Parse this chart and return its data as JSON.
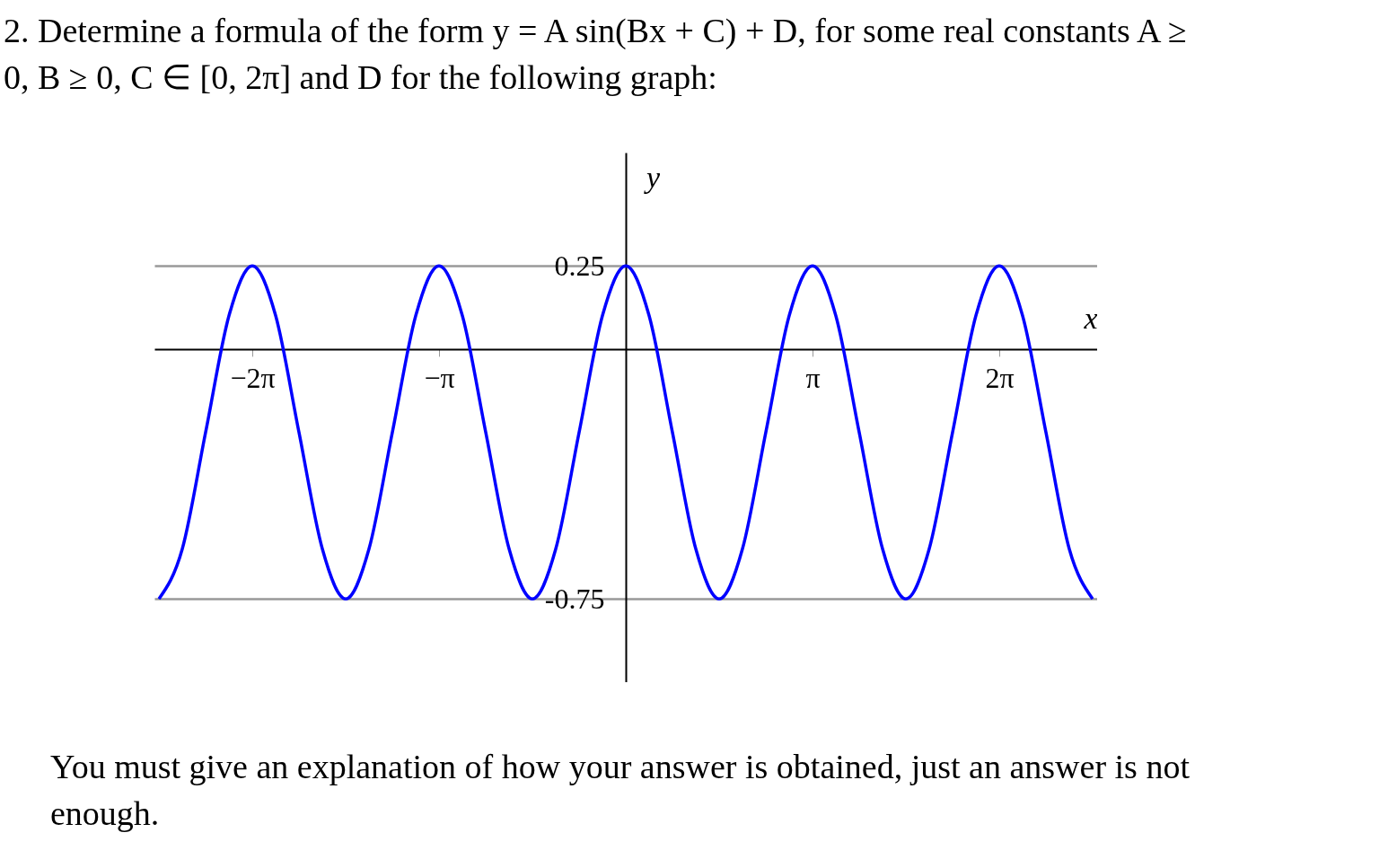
{
  "chart_data": {
    "type": "line",
    "title": "2. Determine a formula of the form y = A sin(Bx + C) + D, for some real constants A ≥ 0, B ≥ 0, C ∈ [0, 2π] and D for the following graph:",
    "xlabel": "x",
    "ylabel": "y",
    "annotations": [
      "You must give an explanation of how your answer is obtained, just an answer is not enough."
    ],
    "x": [
      -7.854,
      -7.461,
      -7.069,
      -6.676,
      -6.283,
      -5.89,
      -5.498,
      -5.105,
      -4.712,
      -4.32,
      -3.927,
      -3.534,
      -3.142,
      -2.749,
      -2.356,
      -1.963,
      -1.571,
      -1.178,
      -0.785,
      -0.393,
      0,
      0.393,
      0.785,
      1.178,
      1.571,
      1.963,
      2.356,
      2.749,
      3.142,
      3.534,
      3.927,
      4.32,
      4.712,
      5.105,
      5.498,
      5.89,
      6.283,
      6.676,
      7.069,
      7.461,
      7.854
    ],
    "series": [
      {
        "color": "#0000ff",
        "values": [
          -0.75,
          -0.6,
          -0.25,
          0.1,
          0.25,
          0.1,
          -0.25,
          -0.6,
          -0.75,
          -0.6,
          -0.25,
          0.1,
          0.25,
          0.1,
          -0.25,
          -0.6,
          -0.75,
          -0.6,
          -0.25,
          0.1,
          0.25,
          0.1,
          -0.25,
          -0.6,
          -0.75,
          -0.6,
          -0.25,
          0.1,
          0.25,
          0.1,
          -0.25,
          -0.6,
          -0.75,
          -0.6,
          -0.25,
          0.1,
          0.25,
          0.1,
          -0.25,
          -0.6,
          -0.75
        ]
      }
    ],
    "xlim": [
      -7.93,
      7.93
    ],
    "ylim": [
      -1.0,
      0.59
    ],
    "xticks": [
      {
        "value": -6.283,
        "label": "−2π"
      },
      {
        "value": -3.142,
        "label": "−π"
      },
      {
        "value": 3.142,
        "label": "π"
      },
      {
        "value": 6.283,
        "label": "2π"
      }
    ],
    "yticks": [
      0.25,
      -0.75
    ],
    "grid": "y",
    "marker": "none",
    "line_style": "solid"
  }
}
